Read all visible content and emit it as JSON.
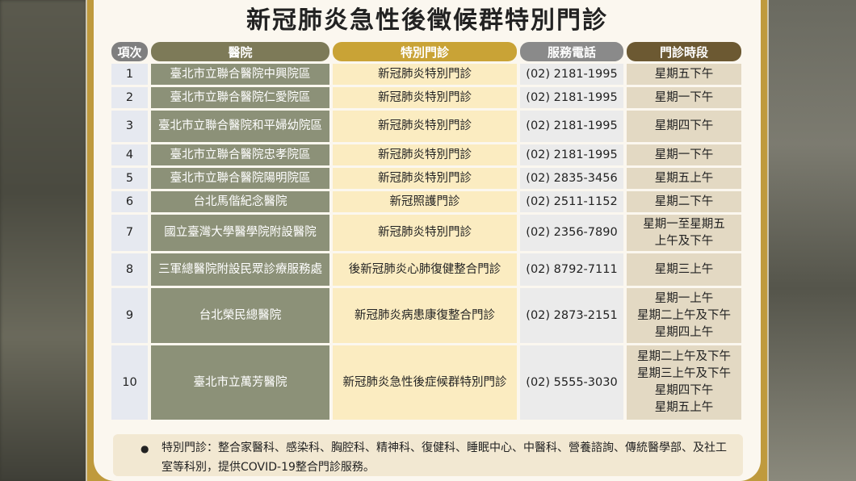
{
  "title": "新冠肺炎急性後徵候群特別門診",
  "headers": [
    "項次",
    "醫院",
    "特別門診",
    "服務電話",
    "門診時段"
  ],
  "rows": [
    {
      "no": "1",
      "hospital": "臺北市立聯合醫院中興院區",
      "clinic": "新冠肺炎特別門診",
      "phone": "(02) 2181-1995",
      "times": [
        "星期五下午"
      ]
    },
    {
      "no": "2",
      "hospital": "臺北市立聯合醫院仁愛院區",
      "clinic": "新冠肺炎特別門診",
      "phone": "(02) 2181-1995",
      "times": [
        "星期一下午"
      ]
    },
    {
      "no": "3",
      "hospital": "臺北市立聯合醫院和平婦幼院區",
      "clinic": "新冠肺炎特別門診",
      "phone": "(02) 2181-1995",
      "times": [
        "星期四下午"
      ]
    },
    {
      "no": "4",
      "hospital": "臺北市立聯合醫院忠孝院區",
      "clinic": "新冠肺炎特別門診",
      "phone": "(02) 2181-1995",
      "times": [
        "星期一下午"
      ]
    },
    {
      "no": "5",
      "hospital": "臺北市立聯合醫院陽明院區",
      "clinic": "新冠肺炎特別門診",
      "phone": "(02) 2835-3456",
      "times": [
        "星期五上午"
      ]
    },
    {
      "no": "6",
      "hospital": "台北馬偕紀念醫院",
      "clinic": "新冠照護門診",
      "phone": "(02) 2511-1152",
      "times": [
        "星期二下午"
      ]
    },
    {
      "no": "7",
      "hospital": "國立臺灣大學醫學院附設醫院",
      "clinic": "新冠肺炎特別門診",
      "phone": "(02) 2356-7890",
      "times": [
        "星期一至星期五",
        "上午及下午"
      ]
    },
    {
      "no": "8",
      "hospital": "三軍總醫院附設民眾診療服務處",
      "clinic": "後新冠肺炎心肺復健整合門診",
      "phone": "(02) 8792-7111",
      "times": [
        "星期三上午"
      ]
    },
    {
      "no": "9",
      "hospital": "台北榮民總醫院",
      "clinic": "新冠肺炎病患康復整合門診",
      "phone": "(02) 2873-2151",
      "times": [
        "星期一上午",
        "星期二上午及下午",
        "星期四上午"
      ]
    },
    {
      "no": "10",
      "hospital": "臺北市立萬芳醫院",
      "clinic": "新冠肺炎急性後症候群特別門診",
      "phone": "(02) 5555-3030",
      "times": [
        "星期二上午及下午",
        "星期三上午及下午",
        "星期四下午",
        "星期五上午"
      ]
    }
  ],
  "footnote": {
    "bullet": "●",
    "text": "特別門診：整合家醫科、感染科、胸腔科、精神科、復健科、睡眠中心、中醫科、營養諮詢、傳統醫學部、及社工室等科別，提供COVID-19整合門診服務。"
  }
}
